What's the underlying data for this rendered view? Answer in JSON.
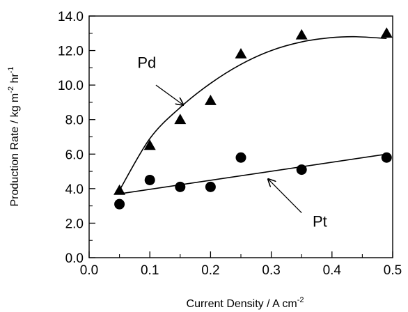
{
  "chart_data": {
    "type": "scatter",
    "xlabel": "Current Density / A cm",
    "xlabel_sup": "-2",
    "ylabel": "Production Rate / kg m",
    "ylabel_sup1": "-2",
    "ylabel_mid": " hr",
    "ylabel_sup2": "-1",
    "xlim": [
      0.0,
      0.5
    ],
    "ylim": [
      0.0,
      14.0
    ],
    "x_ticks": [
      0.0,
      0.1,
      0.2,
      0.3,
      0.4,
      0.5
    ],
    "x_tick_labels": [
      "0.0",
      "0.1",
      "0.2",
      "0.3",
      "0.4",
      "0.5"
    ],
    "y_ticks": [
      0,
      2,
      4,
      6,
      8,
      10,
      12,
      14
    ],
    "y_tick_labels": [
      "0.0",
      "2.0",
      "4.0",
      "6.0",
      "8.0",
      "10.0",
      "12.0",
      "14.0"
    ],
    "grid": false,
    "series": [
      {
        "name": "Pd",
        "marker": "triangle",
        "points": [
          {
            "x": 0.05,
            "y": 3.9
          },
          {
            "x": 0.1,
            "y": 6.5
          },
          {
            "x": 0.15,
            "y": 8.0
          },
          {
            "x": 0.2,
            "y": 9.1
          },
          {
            "x": 0.25,
            "y": 11.8
          },
          {
            "x": 0.35,
            "y": 12.9
          },
          {
            "x": 0.49,
            "y": 13.0
          }
        ],
        "fit_line": [
          {
            "x": 0.05,
            "y": 3.9
          },
          {
            "x": 0.1,
            "y": 6.9
          },
          {
            "x": 0.15,
            "y": 8.7
          },
          {
            "x": 0.2,
            "y": 10.1
          },
          {
            "x": 0.25,
            "y": 11.2
          },
          {
            "x": 0.3,
            "y": 12.0
          },
          {
            "x": 0.35,
            "y": 12.5
          },
          {
            "x": 0.4,
            "y": 12.75
          },
          {
            "x": 0.44,
            "y": 12.8
          },
          {
            "x": 0.49,
            "y": 12.7
          }
        ]
      },
      {
        "name": "Pt",
        "marker": "circle",
        "points": [
          {
            "x": 0.05,
            "y": 3.1
          },
          {
            "x": 0.1,
            "y": 4.5
          },
          {
            "x": 0.15,
            "y": 4.1
          },
          {
            "x": 0.2,
            "y": 4.1
          },
          {
            "x": 0.25,
            "y": 5.8
          },
          {
            "x": 0.35,
            "y": 5.1
          },
          {
            "x": 0.49,
            "y": 5.8
          }
        ],
        "fit_line": [
          {
            "x": 0.05,
            "y": 3.7
          },
          {
            "x": 0.49,
            "y": 6.0
          }
        ]
      }
    ],
    "annotations": [
      {
        "text": "Pd",
        "label_x": 0.095,
        "label_y": 11.0,
        "arrow_from_x": 0.11,
        "arrow_from_y": 10.0,
        "arrow_to_x": 0.155,
        "arrow_to_y": 8.85
      },
      {
        "text": "Pt",
        "label_x": 0.38,
        "label_y": 1.8,
        "arrow_from_x": 0.35,
        "arrow_from_y": 2.6,
        "arrow_to_x": 0.295,
        "arrow_to_y": 4.55
      }
    ]
  }
}
